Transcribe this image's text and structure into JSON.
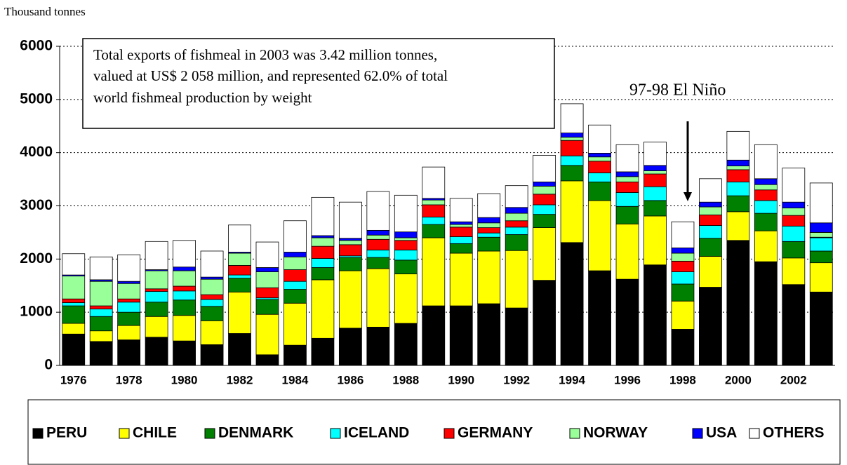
{
  "chart_data": {
    "type": "stacked_bar",
    "y_label": "Thousand tonnes",
    "annotations": [
      "Total exports of fishmeal in 2003 was 3.42 million tonnes,",
      "valued at US$ 2 058 million, and represented 62.0% of total",
      "world fishmeal production by weight"
    ],
    "event_label": "97-98 El Niño",
    "categories": [
      "1976",
      null,
      "1978",
      null,
      "1980",
      null,
      "1982",
      null,
      "1984",
      null,
      "1986",
      null,
      "1988",
      null,
      "1990",
      null,
      "1992",
      null,
      "1994",
      null,
      "1996",
      null,
      "1998",
      null,
      "2000",
      null,
      "2002",
      null
    ],
    "ylim": [
      0,
      6000
    ],
    "yticks": [
      0,
      1000,
      2000,
      3000,
      4000,
      5000,
      6000
    ],
    "grid": true,
    "legend": "bottom",
    "series": [
      {
        "name": "PERU",
        "color": "#000000",
        "values": [
          590,
          450,
          480,
          530,
          460,
          390,
          600,
          200,
          380,
          510,
          700,
          720,
          790,
          1120,
          1120,
          1160,
          1080,
          1600,
          2310,
          1780,
          1620,
          1890,
          680,
          1470,
          2350,
          1950,
          1520,
          1380
        ]
      },
      {
        "name": "CHILE",
        "color": "#ffff00",
        "values": [
          200,
          200,
          270,
          390,
          480,
          450,
          780,
          760,
          790,
          1100,
          1080,
          1100,
          930,
          1280,
          990,
          990,
          1080,
          990,
          1160,
          1320,
          1040,
          920,
          530,
          580,
          540,
          580,
          500,
          550
        ]
      },
      {
        "name": "DENMARK",
        "color": "#008000",
        "values": [
          330,
          270,
          250,
          270,
          290,
          270,
          260,
          280,
          260,
          230,
          250,
          210,
          260,
          250,
          180,
          260,
          300,
          250,
          290,
          350,
          330,
          290,
          320,
          340,
          300,
          330,
          310,
          220
        ]
      },
      {
        "name": "ICELAND",
        "color": "#00ffff",
        "values": [
          60,
          140,
          190,
          200,
          170,
          130,
          60,
          30,
          150,
          170,
          30,
          140,
          190,
          140,
          130,
          80,
          140,
          180,
          180,
          170,
          260,
          260,
          230,
          240,
          260,
          240,
          290,
          250
        ]
      },
      {
        "name": "GERMANY",
        "color": "#ff0000",
        "values": [
          70,
          60,
          60,
          50,
          90,
          90,
          180,
          190,
          220,
          230,
          210,
          200,
          180,
          230,
          180,
          100,
          120,
          200,
          290,
          220,
          200,
          240,
          200,
          200,
          230,
          200,
          200,
          10
        ]
      },
      {
        "name": "NORWAY",
        "color": "#99ff99",
        "values": [
          430,
          460,
          290,
          340,
          290,
          290,
          230,
          300,
          240,
          160,
          80,
          80,
          50,
          90,
          50,
          90,
          140,
          150,
          60,
          80,
          100,
          60,
          150,
          150,
          70,
          100,
          140,
          90
        ]
      },
      {
        "name": "USA",
        "color": "#0000ff",
        "values": [
          20,
          30,
          40,
          20,
          70,
          40,
          20,
          80,
          90,
          40,
          40,
          90,
          110,
          30,
          50,
          100,
          110,
          80,
          80,
          70,
          90,
          100,
          100,
          90,
          110,
          110,
          110,
          180
        ]
      },
      {
        "name": "OTHERS",
        "color": "#ffffff",
        "values": [
          400,
          430,
          500,
          530,
          500,
          490,
          510,
          480,
          590,
          720,
          680,
          730,
          690,
          590,
          440,
          450,
          410,
          500,
          550,
          530,
          510,
          440,
          490,
          440,
          540,
          640,
          640,
          750
        ]
      }
    ]
  }
}
